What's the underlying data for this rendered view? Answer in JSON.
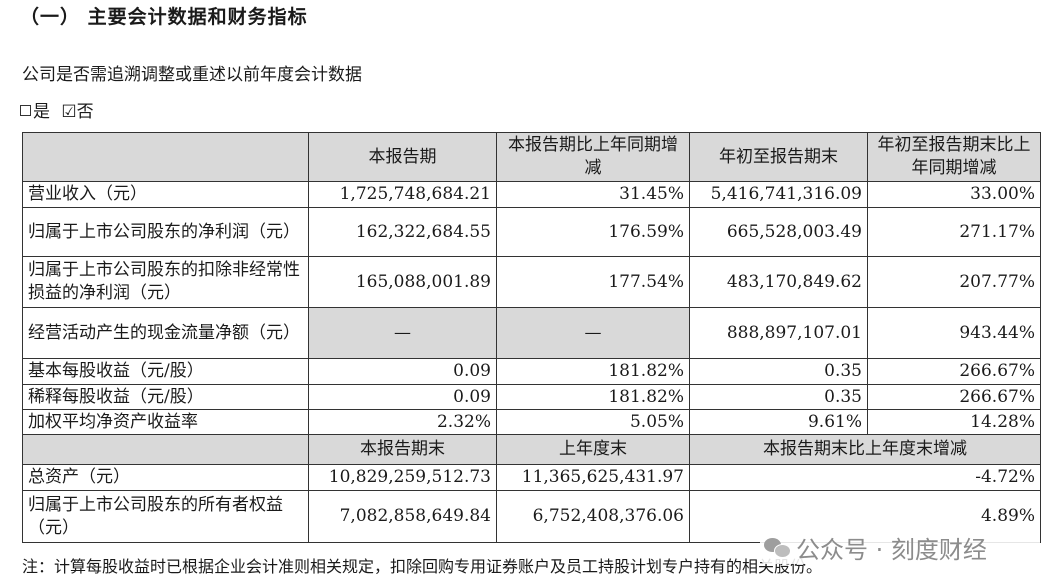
{
  "section": {
    "title": "（一） 主要会计数据和财务指标"
  },
  "question": "公司是否需追溯调整或重述以前年度会计数据",
  "options": {
    "yes": "是",
    "no_mark": "☑",
    "no": "否"
  },
  "table": {
    "headers": {
      "current_period": "本报告期",
      "current_change": "本报告期比上年同期增减",
      "ytd": "年初至报告期末",
      "ytd_change": "年初至报告期末比上年同期增减"
    },
    "rows": [
      {
        "label": "营业收入（元）",
        "c1": "1,725,748,684.21",
        "c2": "31.45%",
        "c3": "5,416,741,316.09",
        "c4": "33.00%"
      },
      {
        "label": "归属于上市公司股东的净利润（元）",
        "c1": "162,322,684.55",
        "c2": "176.59%",
        "c3": "665,528,003.49",
        "c4": "271.17%"
      },
      {
        "label": "归属于上市公司股东的扣除非经常性损益的净利润（元）",
        "c1": "165,088,001.89",
        "c2": "177.54%",
        "c3": "483,170,849.62",
        "c4": "207.77%"
      },
      {
        "label": "经营活动产生的现金流量净额（元）",
        "c1": "—",
        "c2": "—",
        "c3": "888,897,107.01",
        "c4": "943.44%"
      },
      {
        "label": "基本每股收益（元/股）",
        "c1": "0.09",
        "c2": "181.82%",
        "c3": "0.35",
        "c4": "266.67%"
      },
      {
        "label": "稀释每股收益（元/股）",
        "c1": "0.09",
        "c2": "181.82%",
        "c3": "0.35",
        "c4": "266.67%"
      },
      {
        "label": "加权平均净资产收益率",
        "c1": "2.32%",
        "c2": "5.05%",
        "c3": "9.61%",
        "c4": "14.28%"
      }
    ],
    "headers2": {
      "period_end": "本报告期末",
      "prior_year_end": "上年度末",
      "change": "本报告期末比上年度末增减"
    },
    "rows2": [
      {
        "label": "总资产（元）",
        "c1": "10,829,259,512.73",
        "c2": "11,365,625,431.97",
        "c3": "-4.72%"
      },
      {
        "label": "归属于上市公司股东的所有者权益（元）",
        "c1": "7,082,858,649.84",
        "c2": "6,752,408,376.06",
        "c3": "4.89%"
      }
    ]
  },
  "note": "注：计算每股收益时已根据企业会计准则相关规定，扣除回购专用证券账户及员工持股计划专户持有的相关股份。",
  "watermark": {
    "text": "公众号 · 刻度财经",
    "icon": "wechat-icon"
  }
}
